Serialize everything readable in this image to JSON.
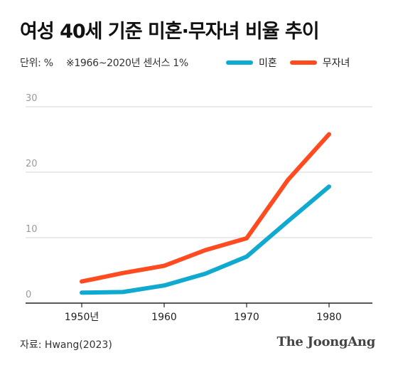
{
  "title": "여성 40세 기준 미혼·무자녀 비율 추이",
  "unit": "단위: %",
  "census_note": "※1966~2020년 센서스 1%",
  "source": "자료: Hwang(2023)",
  "brand": "The JoongAng",
  "chart_data": {
    "type": "line",
    "x_tick_labels": [
      "1950년",
      "1960",
      "1970",
      "1980"
    ],
    "y_tick_labels": [
      "0",
      "10",
      "20",
      "30"
    ],
    "xlim": [
      1945,
      1985
    ],
    "ylim": [
      0,
      30
    ],
    "grid": true,
    "legend_position": "top-right",
    "series": [
      {
        "name": "미혼",
        "color": "#10a9d0",
        "x": [
          1950,
          1955,
          1960,
          1965,
          1970,
          1975,
          1980
        ],
        "values": [
          1.6,
          1.7,
          2.7,
          4.5,
          7.1,
          12.5,
          17.8
        ]
      },
      {
        "name": "무자녀",
        "color": "#ff4b1f",
        "x": [
          1950,
          1955,
          1960,
          1965,
          1970,
          1975,
          1980
        ],
        "values": [
          3.3,
          4.6,
          5.7,
          8.1,
          9.9,
          18.8,
          25.8
        ]
      }
    ]
  }
}
